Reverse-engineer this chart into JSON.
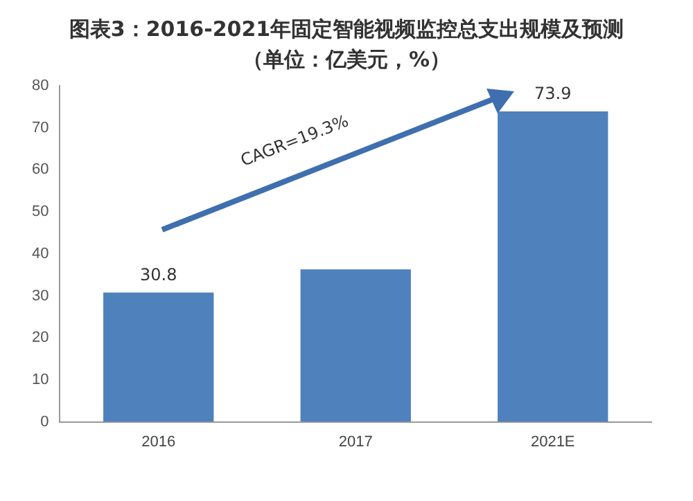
{
  "chart_data": {
    "type": "bar",
    "title": "图表3：2016-2021年固定智能视频监控总支出规模及预测（单位：亿美元，%）",
    "categories": [
      "2016",
      "2017",
      "2021E"
    ],
    "values": [
      30.8,
      36.3,
      73.9
    ],
    "value_labels": [
      "30.8",
      null,
      "73.9"
    ],
    "color": "#4f81bd",
    "ylim": [
      0,
      80
    ],
    "yticks": [
      0,
      10,
      20,
      30,
      40,
      50,
      60,
      70,
      80
    ],
    "grid": false,
    "legend": false,
    "annotations": [
      "CAGR=19.3%"
    ]
  }
}
